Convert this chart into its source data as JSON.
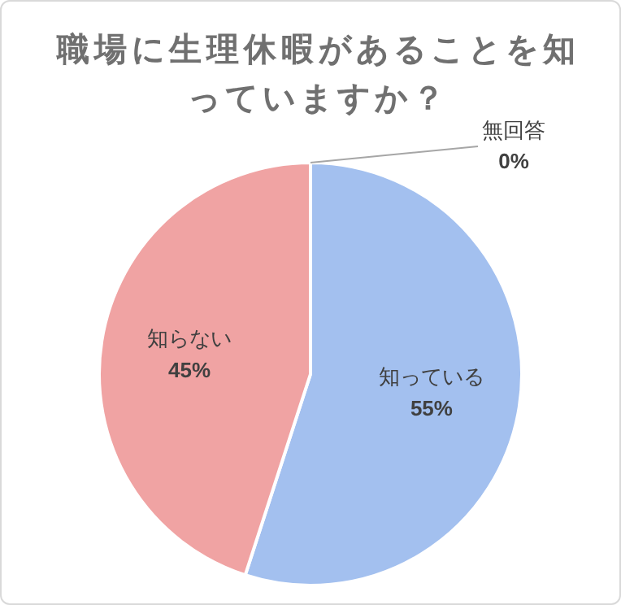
{
  "chart_data": {
    "type": "pie",
    "title": "職場に生理休暇があることを知っていますか？",
    "categories": [
      "知っている",
      "知らない",
      "無回答"
    ],
    "values": [
      55,
      45,
      0
    ],
    "colors": [
      "#a3c0ef",
      "#f0a3a3",
      "#bfbfbf"
    ],
    "value_labels": [
      "55%",
      "45%",
      "0%"
    ],
    "legend": false
  }
}
